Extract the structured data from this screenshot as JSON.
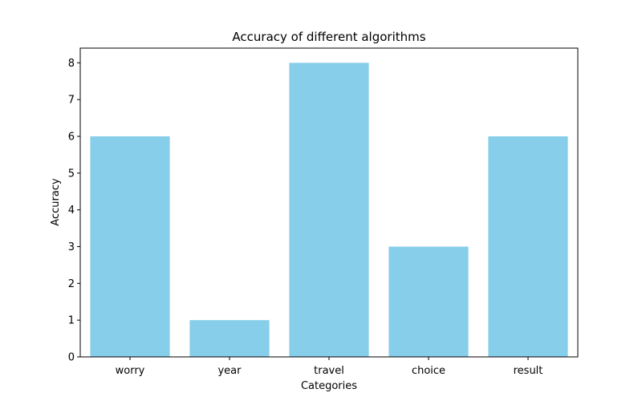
{
  "chart_data": {
    "type": "bar",
    "title": "Accuracy of different algorithms",
    "xlabel": "Categories",
    "ylabel": "Accuracy",
    "categories": [
      "worry",
      "year",
      "travel",
      "choice",
      "result"
    ],
    "values": [
      6,
      1,
      8,
      3,
      6
    ],
    "ylim": [
      0,
      8.4
    ],
    "yticks": [
      0,
      1,
      2,
      3,
      4,
      5,
      6,
      7,
      8
    ],
    "bar_color": "#87CEEB",
    "grid": false,
    "legend": "none"
  }
}
